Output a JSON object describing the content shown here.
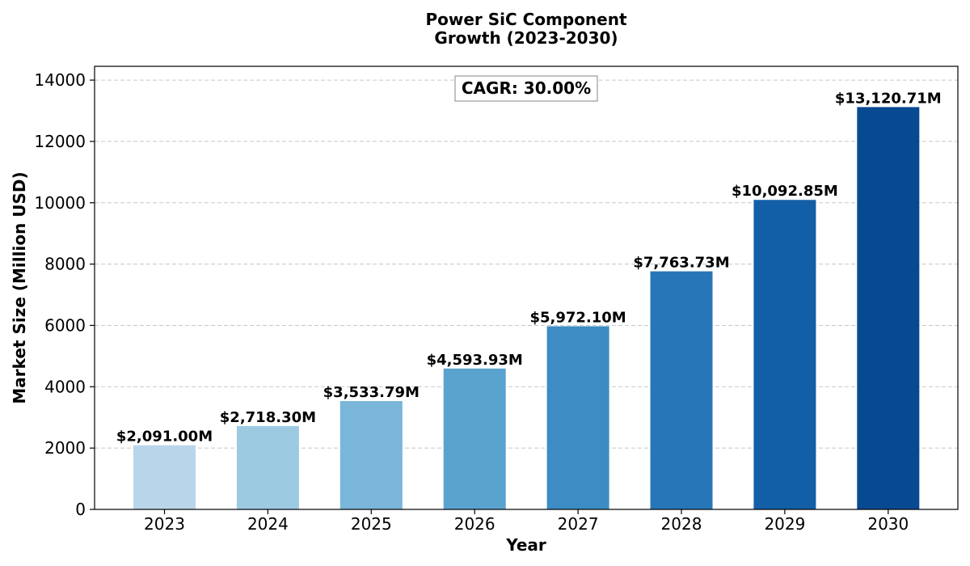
{
  "chart_data": {
    "type": "bar",
    "title_lines": [
      "Power SiC Component",
      "Growth (2023-2030)"
    ],
    "xlabel": "Year",
    "ylabel": "Market Size (Million USD)",
    "categories": [
      "2023",
      "2024",
      "2025",
      "2026",
      "2027",
      "2028",
      "2029",
      "2030"
    ],
    "values": [
      2091.0,
      2718.3,
      3533.79,
      4593.93,
      5972.1,
      7763.73,
      10092.85,
      13120.71
    ],
    "data_labels": [
      "$2,091.00M",
      "$2,718.30M",
      "$3,533.79M",
      "$4,593.93M",
      "$5,972.10M",
      "$7,763.73M",
      "$10,092.85M",
      "$13,120.71M"
    ],
    "bar_colors": [
      "#b9d5ea",
      "#9ccae1",
      "#79b6d9",
      "#5ba3cf",
      "#3d8cc4",
      "#2777b8",
      "#135fa7",
      "#084a91"
    ],
    "ylim": [
      0,
      14450
    ],
    "yticks": [
      0,
      2000,
      4000,
      6000,
      8000,
      10000,
      12000,
      14000
    ],
    "ytick_labels": [
      "0",
      "2000",
      "4000",
      "6000",
      "8000",
      "10000",
      "12000",
      "14000"
    ],
    "grid": "y-dashed",
    "annotation": "CAGR: 30.00%"
  }
}
